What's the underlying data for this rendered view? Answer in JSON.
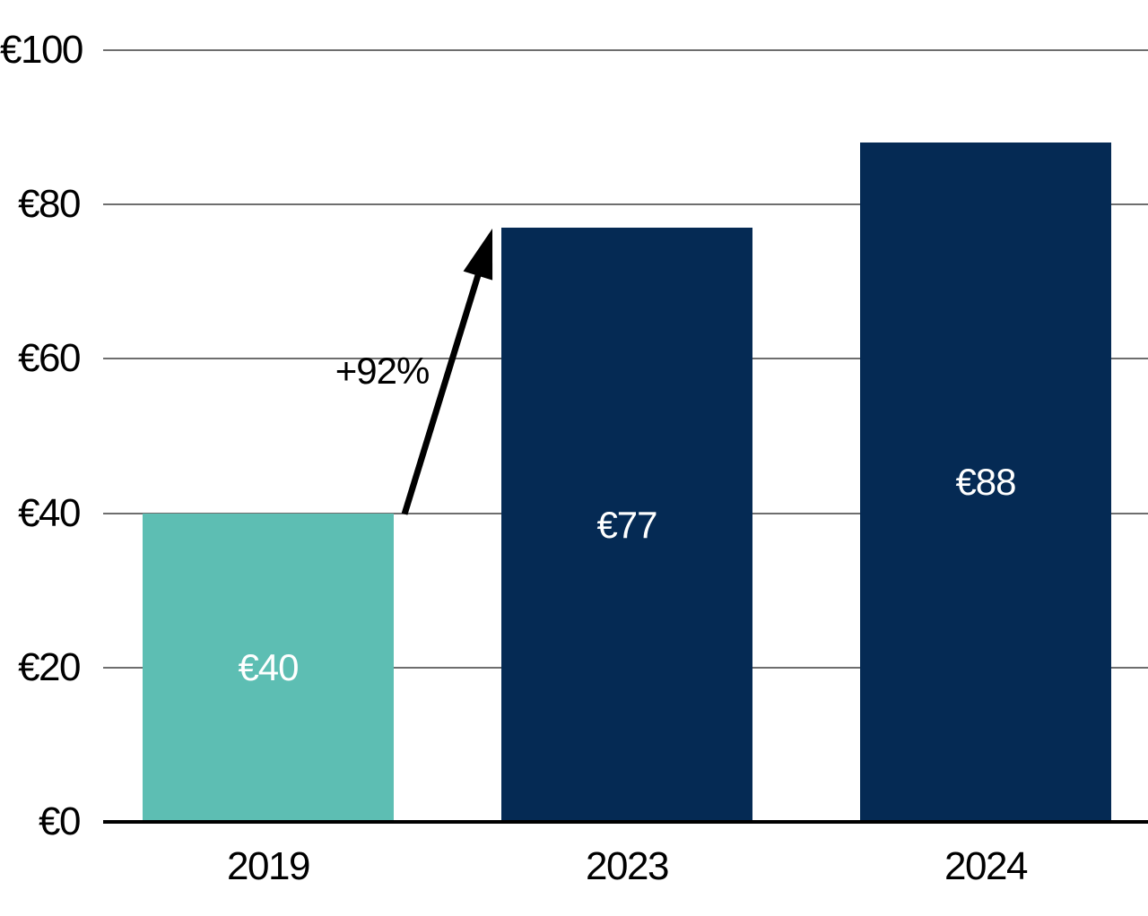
{
  "chart_data": {
    "type": "bar",
    "categories": [
      "2019",
      "2023",
      "2024"
    ],
    "values": [
      40,
      77,
      88
    ],
    "bar_labels": [
      "€40",
      "€77",
      "€88"
    ],
    "bar_colors": [
      "#5DBEB3",
      "#052A54",
      "#052A54"
    ],
    "y_ticks": [
      "€0",
      "€20",
      "€40",
      "€60",
      "€80",
      "€100"
    ],
    "y_tick_values": [
      0,
      20,
      40,
      60,
      80,
      100
    ],
    "ylim": [
      0,
      100
    ],
    "grid": true,
    "legend": "none",
    "annotation": {
      "label": "+92%",
      "from_category": "2019",
      "to_category": "2023"
    }
  },
  "colors": {
    "background": "#FFFFFF",
    "bar_teal": "#5DBEB3",
    "bar_navy": "#052A54",
    "gridline": "#6E6E6E",
    "axis": "#000000",
    "tick_text": "#000000",
    "bar_value_text": "#FFFFFF",
    "annotation_text": "#000000",
    "arrow": "#000000"
  }
}
